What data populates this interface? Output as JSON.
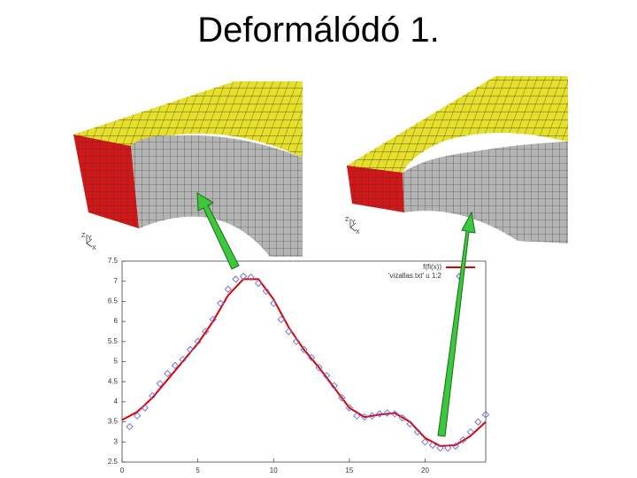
{
  "slide": {
    "title": "Deformálódó 1."
  },
  "meshes": [
    {
      "axis_labels": [
        "Z",
        "Y",
        "X"
      ]
    },
    {
      "axis_labels": [
        "Z",
        "Y",
        "X"
      ]
    }
  ],
  "chart_data": {
    "type": "line",
    "xlim": [
      0,
      24
    ],
    "xticks": [
      0,
      5,
      10,
      15,
      20
    ],
    "ylim": [
      2.5,
      7.5
    ],
    "yticks": [
      2.5,
      3,
      3.5,
      4,
      4.5,
      5,
      5.5,
      6,
      6.5,
      7,
      7.5
    ],
    "grid": false,
    "legend": "top-right",
    "series": [
      {
        "name": "f(fi(x))",
        "color": "#e00000",
        "marker": "none",
        "x": [
          0,
          1,
          2,
          3,
          4,
          5,
          6,
          7,
          8,
          9,
          10,
          11,
          12,
          13,
          14,
          15,
          16,
          17,
          18,
          19,
          20,
          21,
          22,
          23,
          24
        ],
        "values": [
          3.55,
          3.75,
          4.1,
          4.55,
          5.0,
          5.45,
          6.0,
          6.65,
          7.05,
          7.05,
          6.55,
          5.85,
          5.3,
          4.85,
          4.35,
          3.85,
          3.62,
          3.68,
          3.72,
          3.5,
          3.1,
          2.9,
          2.92,
          3.15,
          3.5
        ]
      },
      {
        "name": "'vizallas.txt' u 1:2",
        "color": "#6a6ad8",
        "marker": "diamond",
        "x": [
          0.5,
          1,
          1.5,
          2,
          2.5,
          3,
          3.5,
          4,
          4.5,
          5,
          5.5,
          6,
          6.5,
          7,
          7.5,
          8,
          8.5,
          9,
          9.5,
          10,
          10.5,
          11,
          11.5,
          12,
          12.5,
          13,
          13.5,
          14,
          14.5,
          15,
          15.5,
          16,
          16.5,
          17,
          17.5,
          18,
          18.5,
          19,
          19.5,
          20,
          20.5,
          21,
          21.5,
          22,
          22.5,
          23,
          23.5,
          24
        ],
        "values": [
          3.38,
          3.65,
          3.85,
          4.15,
          4.45,
          4.7,
          4.9,
          5.05,
          5.3,
          5.5,
          5.75,
          6.05,
          6.45,
          6.8,
          7.05,
          7.12,
          7.1,
          6.95,
          6.75,
          6.45,
          6.05,
          5.75,
          5.5,
          5.3,
          5.1,
          4.85,
          4.65,
          4.4,
          4.1,
          3.85,
          3.65,
          3.62,
          3.65,
          3.7,
          3.72,
          3.7,
          3.6,
          3.45,
          3.25,
          3.0,
          2.92,
          2.85,
          2.85,
          2.9,
          3.05,
          3.25,
          3.5,
          3.68
        ]
      }
    ]
  }
}
